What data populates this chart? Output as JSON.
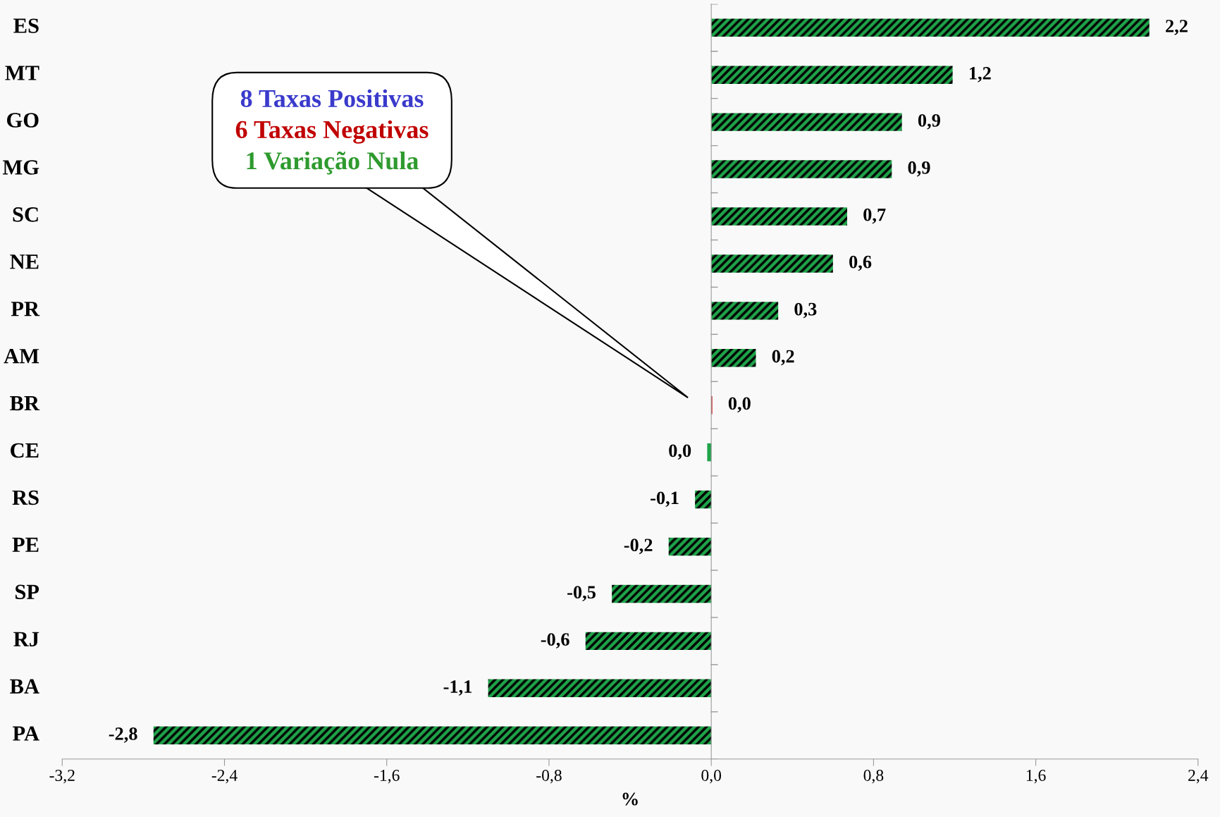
{
  "chart_data": {
    "type": "bar",
    "orientation": "horizontal",
    "categories": [
      "ES",
      "MT",
      "GO",
      "MG",
      "SC",
      "NE",
      "PR",
      "AM",
      "BR",
      "CE",
      "RS",
      "PE",
      "SP",
      "RJ",
      "BA",
      "PA"
    ],
    "values": [
      2.16,
      1.19,
      0.94,
      0.89,
      0.67,
      0.6,
      0.33,
      0.22,
      0.005,
      -0.02,
      -0.08,
      -0.21,
      -0.49,
      -0.62,
      -1.1,
      -2.75
    ],
    "value_labels": [
      "2,2",
      "1,2",
      "0,9",
      "0,9",
      "0,7",
      "0,6",
      "0,3",
      "0,2",
      "0,0",
      "0,0",
      "-0,1",
      "-0,2",
      "-0,5",
      "-0,6",
      "-1,1",
      "-2,8"
    ],
    "colors": [
      "#1fa34a",
      "#1fa34a",
      "#1fa34a",
      "#1fa34a",
      "#1fa34a",
      "#1fa34a",
      "#1fa34a",
      "#1fa34a",
      "#c00000",
      "#1fa34a",
      "#1fa34a",
      "#1fa34a",
      "#1fa34a",
      "#1fa34a",
      "#1fa34a",
      "#1fa34a"
    ],
    "xlim": [
      -3.2,
      2.4
    ],
    "xticks": [
      {
        "value": -3.2,
        "label": "-3,2"
      },
      {
        "value": -2.4,
        "label": "-2,4"
      },
      {
        "value": -1.6,
        "label": "-1,6"
      },
      {
        "value": -0.8,
        "label": "-0,8"
      },
      {
        "value": 0,
        "label": "0,0"
      },
      {
        "value": 0.8,
        "label": "0,8"
      },
      {
        "value": 1.6,
        "label": "1,6"
      },
      {
        "value": 2.4,
        "label": "2,4"
      }
    ],
    "xlabel": "%",
    "annotations": [
      "8 Taxas Positivas",
      "6 Taxas Negativas",
      "1 Variação Nula"
    ]
  }
}
